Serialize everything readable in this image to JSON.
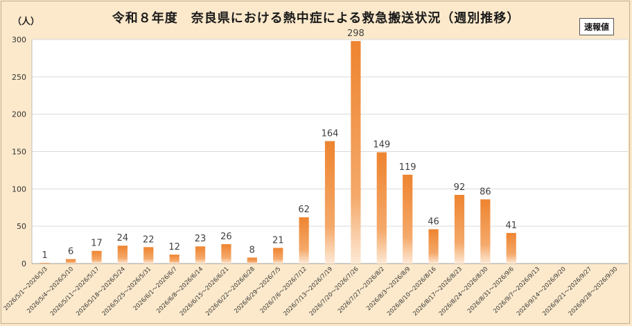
{
  "chart_data": {
    "type": "bar",
    "title": "令和８年度　奈良県における熱中症による救急搬送状況（週別推移）",
    "ylabel": "（人）",
    "badge": "速報値",
    "ylim": [
      0,
      300
    ],
    "yticks": [
      0,
      50,
      100,
      150,
      200,
      250,
      300
    ],
    "grid": true,
    "bar_color": "#ee8a33",
    "categories": [
      "2026/5/1～2026/5/3",
      "2026/5/4～2026/5/10",
      "2026/5/11～2026/5/17",
      "2026/5/18～2026/5/24",
      "2026/5/25～2026/5/31",
      "2026/6/1～2026/6/7",
      "2026/6/8～2026/6/14",
      "2026/6/15～2026/6/21",
      "2026/6/22～2026/6/28",
      "2026/6/29～2026/7/5",
      "2026/7/6～2026/7/12",
      "2026/7/13～2026/7/19",
      "2026/7/20～2026/7/26",
      "2026/7/27～2026/8/2",
      "2026/8/3～2026/8/9",
      "2026/8/10～2026/8/16",
      "2026/8/17～2026/8/23",
      "2026/8/24～2026/8/30",
      "2026/8/31～2026/9/6",
      "2026/9/7～2026/9/13",
      "2026/9/14～2026/9/20",
      "2026/9/21～2026/9/27",
      "2026/9/28～2026/9/30"
    ],
    "values": [
      1,
      6,
      17,
      24,
      22,
      12,
      23,
      26,
      8,
      21,
      62,
      164,
      298,
      149,
      119,
      46,
      92,
      86,
      41,
      null,
      null,
      null,
      null
    ]
  }
}
